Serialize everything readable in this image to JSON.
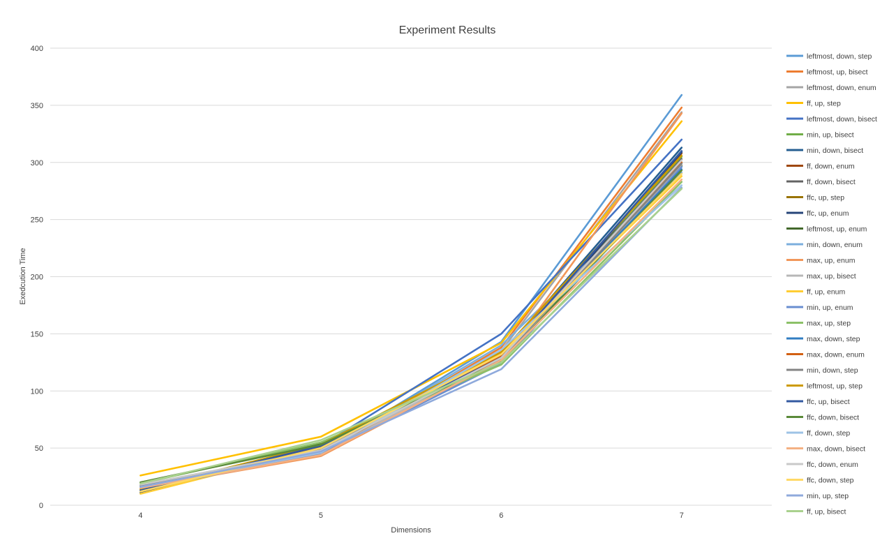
{
  "chart_data": {
    "type": "line",
    "title": "Experiment Results",
    "xlabel": "Dimensions",
    "ylabel": "Exedcution Time",
    "categories": [
      "4",
      "5",
      "6",
      "7"
    ],
    "ylim": [
      0,
      400
    ],
    "yticks": [
      0,
      50,
      100,
      150,
      200,
      250,
      300,
      350,
      400
    ],
    "grid": true,
    "legend_position": "right",
    "series": [
      {
        "name": "leftmost, down, step",
        "color": "#5B9BD5",
        "values": [
          18,
          47,
          143,
          359
        ]
      },
      {
        "name": "leftmost, up, bisect",
        "color": "#ED7D31",
        "values": [
          15,
          45,
          138,
          348
        ]
      },
      {
        "name": "leftmost, down, enum",
        "color": "#A5A5A5",
        "values": [
          16,
          46,
          135,
          344
        ]
      },
      {
        "name": "ff, up, step",
        "color": "#FFC000",
        "values": [
          26,
          60,
          142,
          336
        ]
      },
      {
        "name": "leftmost, down, bisect",
        "color": "#4472C4",
        "values": [
          14,
          52,
          150,
          320
        ]
      },
      {
        "name": "min, up, bisect",
        "color": "#70AD47",
        "values": [
          17,
          49,
          128,
          305
        ]
      },
      {
        "name": "min, down, bisect",
        "color": "#255E91",
        "values": [
          12,
          48,
          132,
          313
        ]
      },
      {
        "name": "ff, down, enum",
        "color": "#9E480E",
        "values": [
          15,
          50,
          130,
          308
        ]
      },
      {
        "name": "ff, down, bisect",
        "color": "#636363",
        "values": [
          14,
          51,
          129,
          303
        ]
      },
      {
        "name": "ffc, up, step",
        "color": "#997300",
        "values": [
          13,
          52,
          131,
          300
        ]
      },
      {
        "name": "ffc, up, enum",
        "color": "#264478",
        "values": [
          11,
          53,
          127,
          309
        ]
      },
      {
        "name": "leftmost, up, enum",
        "color": "#43682B",
        "values": [
          20,
          54,
          125,
          297
        ]
      },
      {
        "name": "min, down, enum",
        "color": "#7CAFDD",
        "values": [
          16,
          47,
          140,
          291
        ]
      },
      {
        "name": "max, up, enum",
        "color": "#F1975A",
        "values": [
          15,
          43,
          126,
          343
        ]
      },
      {
        "name": "max, up, bisect",
        "color": "#B7B7B7",
        "values": [
          17,
          46,
          128,
          298
        ]
      },
      {
        "name": "ff, up, enum",
        "color": "#FFCD33",
        "values": [
          10,
          50,
          133,
          288
        ]
      },
      {
        "name": "min, up, enum",
        "color": "#698ED0",
        "values": [
          14,
          45,
          124,
          296
        ]
      },
      {
        "name": "max, up, step",
        "color": "#8CC168",
        "values": [
          19,
          55,
          123,
          283
        ]
      },
      {
        "name": "max, down, step",
        "color": "#327DC2",
        "values": [
          15,
          48,
          130,
          294
        ]
      },
      {
        "name": "max, down, enum",
        "color": "#D26012",
        "values": [
          16,
          47,
          131,
          300
        ]
      },
      {
        "name": "min, down, step",
        "color": "#848484",
        "values": [
          17,
          49,
          128,
          299
        ]
      },
      {
        "name": "leftmost, up, step",
        "color": "#CC9A00",
        "values": [
          14,
          53,
          134,
          306
        ]
      },
      {
        "name": "ffc, up, bisect",
        "color": "#335AA1",
        "values": [
          13,
          52,
          129,
          310
        ]
      },
      {
        "name": "ffc, down, bisect",
        "color": "#5A8A39",
        "values": [
          20,
          53,
          126,
          293
        ]
      },
      {
        "name": "ff, down, step",
        "color": "#9DC3E6",
        "values": [
          16,
          46,
          136,
          280
        ]
      },
      {
        "name": "max, down, bisect",
        "color": "#F4B183",
        "values": [
          15,
          44,
          127,
          285
        ]
      },
      {
        "name": "ffc, down, enum",
        "color": "#C9C9C9",
        "values": [
          18,
          48,
          129,
          302
        ]
      },
      {
        "name": "ffc, down, step",
        "color": "#FFD966",
        "values": [
          12,
          50,
          132,
          290
        ]
      },
      {
        "name": "min, up, step",
        "color": "#8FAADC",
        "values": [
          16,
          47,
          119,
          278
        ]
      },
      {
        "name": "ff, up, bisect",
        "color": "#A9D18E",
        "values": [
          19,
          57,
          125,
          277
        ]
      }
    ]
  }
}
